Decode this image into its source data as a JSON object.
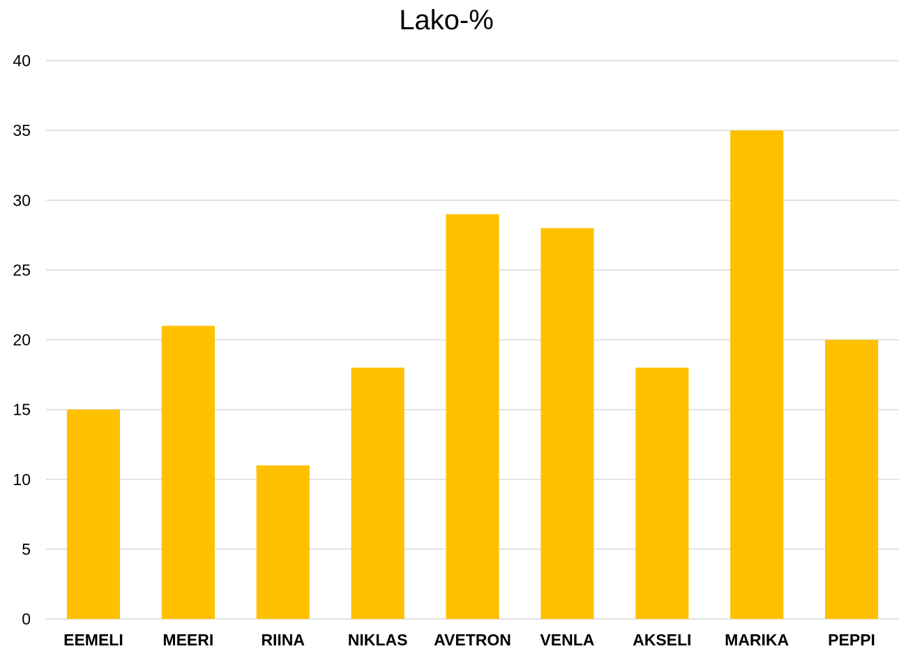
{
  "chart_data": {
    "type": "bar",
    "title": "Lako-%",
    "categories": [
      "EEMELI",
      "MEERI",
      "RIINA",
      "NIKLAS",
      "AVETRON",
      "VENLA",
      "AKSELI",
      "MARIKA",
      "PEPPI"
    ],
    "values": [
      15,
      21,
      11,
      18,
      29,
      28,
      18,
      35,
      20
    ],
    "xlabel": "",
    "ylabel": "",
    "ylim": [
      0,
      40
    ],
    "yticks": [
      0,
      5,
      10,
      15,
      20,
      25,
      30,
      35,
      40
    ],
    "grid": true,
    "legend": "none",
    "bar_color": "#FFC000",
    "grid_color": "#D9D9D9"
  }
}
